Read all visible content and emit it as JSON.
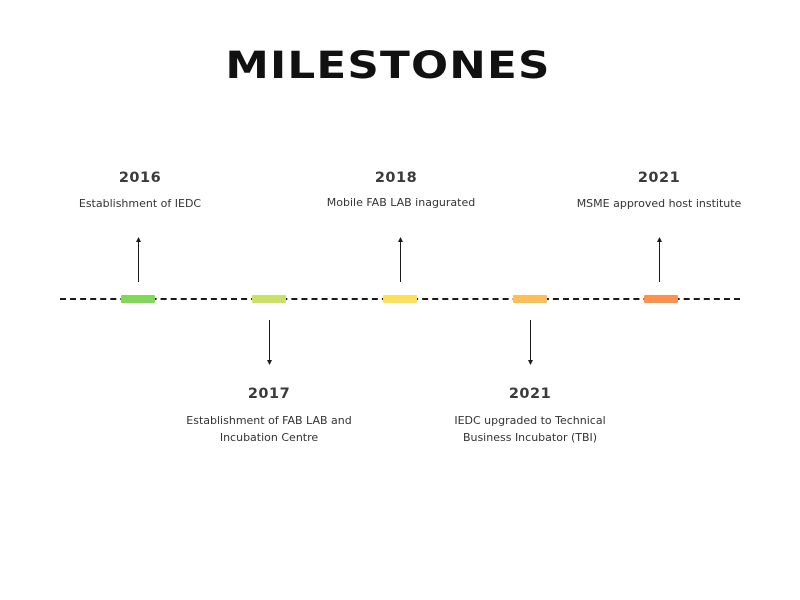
{
  "title": "MILESTONES",
  "colors": {
    "line": "#1a1a1a",
    "text": "#333333",
    "marker_1": "#7ed957",
    "marker_2": "#c9e265",
    "marker_3": "#ffde59",
    "marker_4": "#ffbd59",
    "marker_5": "#ff914d"
  },
  "milestones": [
    {
      "year": "2016",
      "description": "Establishment of IEDC",
      "position": "above"
    },
    {
      "year": "2017",
      "description": "Establishment of FAB LAB and Incubation Centre",
      "position": "below"
    },
    {
      "year": "2018",
      "description": "Mobile FAB LAB inagurated",
      "position": "above"
    },
    {
      "year": "2021",
      "description": "IEDC upgraded to Technical Business Incubator (TBI)",
      "position": "below"
    },
    {
      "year": "2021",
      "description": "MSME approved host institute",
      "position": "above"
    }
  ]
}
